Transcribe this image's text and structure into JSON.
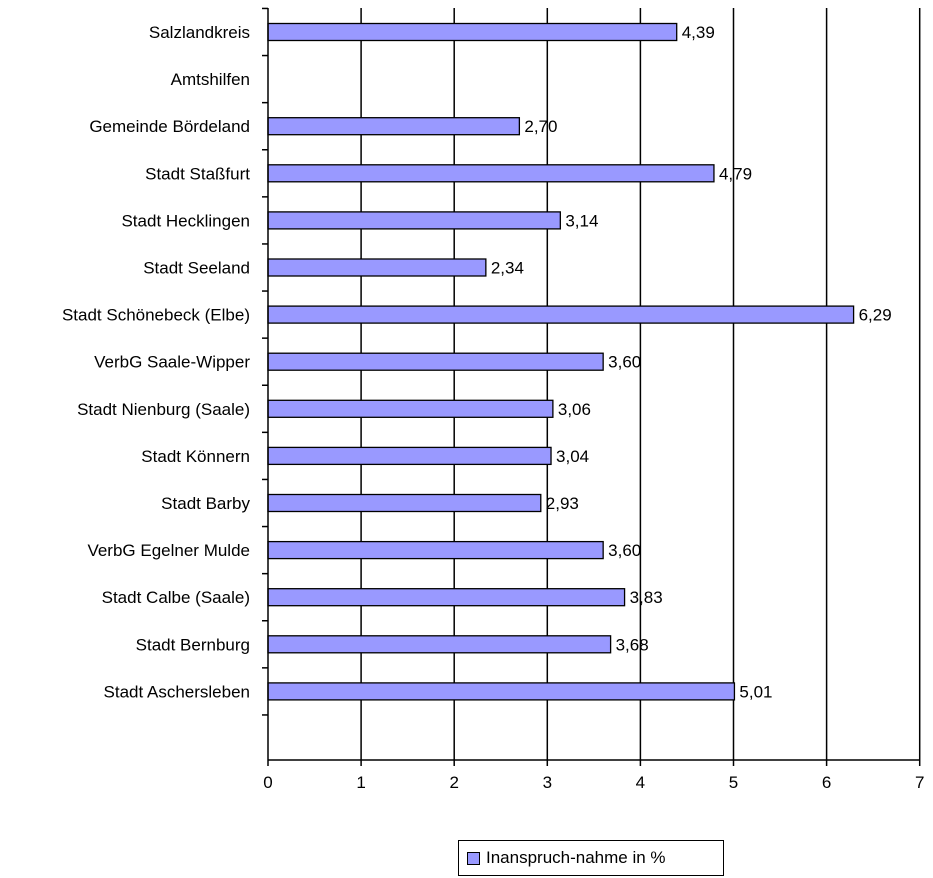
{
  "chart_data": {
    "type": "bar",
    "orientation": "horizontal",
    "categories": [
      "Salzlandkreis",
      "Amtshilfen",
      "Gemeinde Bördeland",
      "Stadt Staßfurt",
      "Stadt Hecklingen",
      "Stadt Seeland",
      "Stadt Schönebeck (Elbe)",
      "VerbG Saale-Wipper",
      "Stadt Nienburg (Saale)",
      "Stadt Könnern",
      "Stadt Barby",
      "VerbG Egelner Mulde",
      "Stadt Calbe (Saale)",
      "Stadt Bernburg",
      "Stadt Aschersleben"
    ],
    "values": [
      4.39,
      null,
      2.7,
      4.79,
      3.14,
      2.34,
      6.29,
      3.6,
      3.06,
      3.04,
      2.93,
      3.6,
      3.83,
      3.68,
      5.01
    ],
    "value_labels": [
      "4,39",
      "",
      "2,70",
      "4,79",
      "3,14",
      "2,34",
      "6,29",
      "3,60",
      "3,06",
      "3,04",
      "2,93",
      "3,60",
      "3,83",
      "3,68",
      "5,01"
    ],
    "x_ticks": [
      "0",
      "1",
      "2",
      "3",
      "4",
      "5",
      "6",
      "7"
    ],
    "xlim": [
      0,
      7
    ],
    "series_name": "Inanspruch-nahme in %",
    "bar_color": "#9999ff",
    "grid": "vertical major lines",
    "legend_position": "bottom-center"
  }
}
